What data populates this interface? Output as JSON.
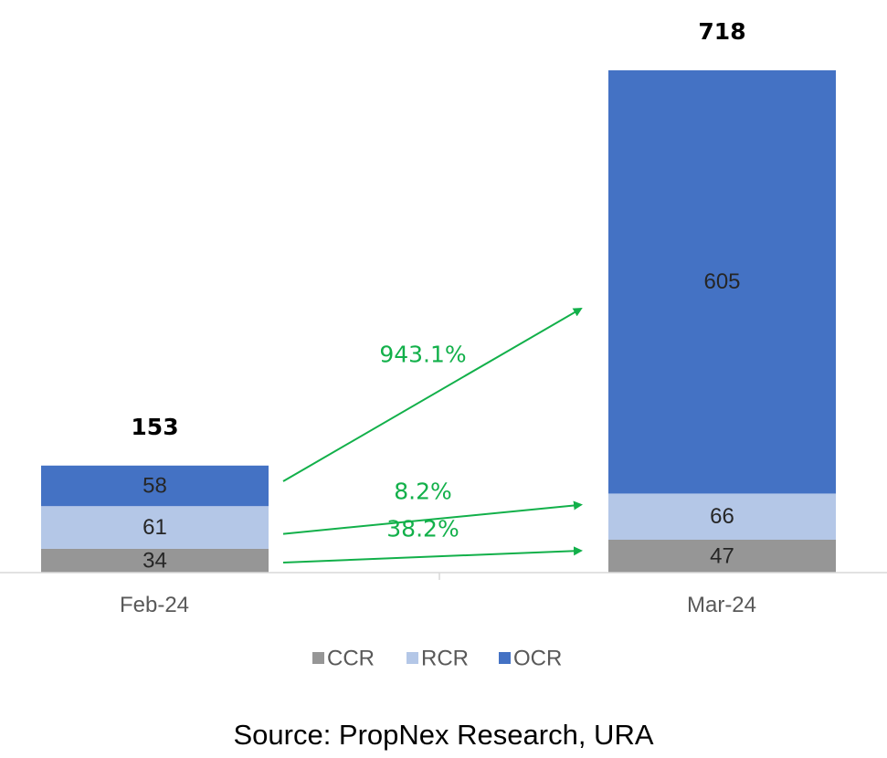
{
  "chart_data": {
    "type": "bar",
    "stacked": true,
    "categories": [
      "Feb-24",
      "Mar-24"
    ],
    "series": [
      {
        "name": "CCR",
        "values": [
          34,
          47
        ],
        "color": "#969696"
      },
      {
        "name": "RCR",
        "values": [
          61,
          66
        ],
        "color": "#b4c7e7"
      },
      {
        "name": "OCR",
        "values": [
          58,
          605
        ],
        "color": "#4472c4"
      }
    ],
    "totals": [
      "153",
      "718"
    ],
    "growth_annotations": [
      {
        "series": "OCR",
        "label": "943.1%"
      },
      {
        "series": "RCR",
        "label": "8.2%"
      },
      {
        "series": "CCR",
        "label": "38.2%"
      }
    ],
    "annotation_color": "#12b04a",
    "legend_position": "bottom",
    "grid": false,
    "ylim": [
      0,
      718
    ]
  },
  "source": "Source: PropNex Research, URA"
}
